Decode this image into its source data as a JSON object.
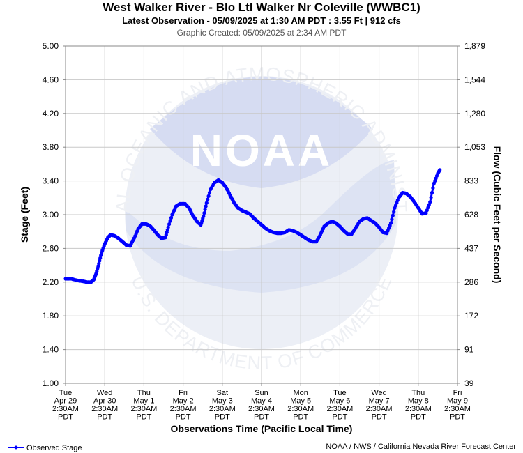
{
  "header": {
    "title": "West Walker River - Blo Ltl Walker Nr Coleville (WWBC1)",
    "subtitle": "Latest Observation - 05/09/2025 at 1:30 AM PDT : 3.55 Ft | 912 cfs",
    "created": "Graphic Created: 05/09/2025 at 2:34 AM PDT"
  },
  "watermark": {
    "logo_text": "NOAA",
    "ring_top": "NATIONAL OCEANIC AND ATMOSPHERIC ADMINISTRATION",
    "ring_bottom": "U.S. DEPARTMENT OF COMMERCE"
  },
  "footer": {
    "legend_label": "Observed Stage",
    "credit": "NOAA / NWS / California Nevada River Forecast Center"
  },
  "colors": {
    "series": "#0000ff",
    "grid": "#c8c8c8",
    "watermark": "#e8ecf6"
  },
  "chart_data": {
    "type": "line",
    "xlabel": "Observations Time (Pacific Local Time)",
    "ylabel": "Stage (Feet)",
    "y2label": "Flow (Cubic Feet per Second)",
    "ylim": [
      1.0,
      5.0
    ],
    "xlim": [
      0,
      10
    ],
    "grid": true,
    "legend_position": "bottom-left",
    "y_ticks": [
      "5.00",
      "4.60",
      "4.20",
      "3.80",
      "3.40",
      "3.00",
      "2.60",
      "2.20",
      "1.80",
      "1.40",
      "1.00"
    ],
    "y2_ticks": [
      "1,879",
      "1,544",
      "1,280",
      "1,053",
      "833",
      "628",
      "437",
      "286",
      "172",
      "91",
      "39"
    ],
    "x_ticks": [
      [
        "Tue",
        "Apr 29",
        "2:30AM",
        "PDT"
      ],
      [
        "Wed",
        "Apr 30",
        "2:30AM",
        "PDT"
      ],
      [
        "Thu",
        "May 1",
        "2:30AM",
        "PDT"
      ],
      [
        "Fri",
        "May 2",
        "2:30AM",
        "PDT"
      ],
      [
        "Sat",
        "May 3",
        "2:30AM",
        "PDT"
      ],
      [
        "Sun",
        "May 4",
        "2:30AM",
        "PDT"
      ],
      [
        "Mon",
        "May 5",
        "2:30AM",
        "PDT"
      ],
      [
        "Tue",
        "May 6",
        "2:30AM",
        "PDT"
      ],
      [
        "Wed",
        "May 7",
        "2:30AM",
        "PDT"
      ],
      [
        "Thu",
        "May 8",
        "2:30AM",
        "PDT"
      ],
      [
        "Fri",
        "May 9",
        "2:30AM",
        "PDT"
      ]
    ],
    "series": [
      {
        "name": "Observed Stage",
        "points": [
          [
            0.0,
            2.24
          ],
          [
            0.15,
            2.24
          ],
          [
            0.3,
            2.22
          ],
          [
            0.45,
            2.21
          ],
          [
            0.55,
            2.2
          ],
          [
            0.65,
            2.2
          ],
          [
            0.72,
            2.23
          ],
          [
            0.78,
            2.3
          ],
          [
            0.85,
            2.42
          ],
          [
            0.92,
            2.55
          ],
          [
            1.0,
            2.65
          ],
          [
            1.08,
            2.73
          ],
          [
            1.15,
            2.76
          ],
          [
            1.25,
            2.75
          ],
          [
            1.35,
            2.72
          ],
          [
            1.45,
            2.68
          ],
          [
            1.55,
            2.64
          ],
          [
            1.65,
            2.63
          ],
          [
            1.75,
            2.72
          ],
          [
            1.85,
            2.83
          ],
          [
            1.95,
            2.89
          ],
          [
            2.05,
            2.89
          ],
          [
            2.15,
            2.87
          ],
          [
            2.25,
            2.82
          ],
          [
            2.35,
            2.76
          ],
          [
            2.45,
            2.72
          ],
          [
            2.55,
            2.73
          ],
          [
            2.62,
            2.85
          ],
          [
            2.72,
            3.0
          ],
          [
            2.82,
            3.1
          ],
          [
            2.92,
            3.13
          ],
          [
            3.05,
            3.13
          ],
          [
            3.15,
            3.08
          ],
          [
            3.25,
            2.99
          ],
          [
            3.35,
            2.92
          ],
          [
            3.45,
            2.88
          ],
          [
            3.52,
            2.98
          ],
          [
            3.6,
            3.14
          ],
          [
            3.7,
            3.3
          ],
          [
            3.8,
            3.38
          ],
          [
            3.9,
            3.41
          ],
          [
            4.0,
            3.38
          ],
          [
            4.1,
            3.32
          ],
          [
            4.2,
            3.23
          ],
          [
            4.3,
            3.14
          ],
          [
            4.4,
            3.08
          ],
          [
            4.5,
            3.05
          ],
          [
            4.6,
            3.03
          ],
          [
            4.7,
            3.01
          ],
          [
            4.8,
            2.96
          ],
          [
            4.9,
            2.92
          ],
          [
            5.0,
            2.88
          ],
          [
            5.1,
            2.84
          ],
          [
            5.2,
            2.81
          ],
          [
            5.3,
            2.79
          ],
          [
            5.4,
            2.78
          ],
          [
            5.5,
            2.78
          ],
          [
            5.6,
            2.79
          ],
          [
            5.7,
            2.82
          ],
          [
            5.8,
            2.81
          ],
          [
            5.9,
            2.79
          ],
          [
            6.0,
            2.76
          ],
          [
            6.1,
            2.73
          ],
          [
            6.2,
            2.7
          ],
          [
            6.3,
            2.68
          ],
          [
            6.4,
            2.68
          ],
          [
            6.5,
            2.76
          ],
          [
            6.6,
            2.86
          ],
          [
            6.7,
            2.9
          ],
          [
            6.8,
            2.92
          ],
          [
            6.9,
            2.9
          ],
          [
            7.0,
            2.86
          ],
          [
            7.1,
            2.81
          ],
          [
            7.2,
            2.77
          ],
          [
            7.3,
            2.77
          ],
          [
            7.4,
            2.84
          ],
          [
            7.5,
            2.92
          ],
          [
            7.6,
            2.95
          ],
          [
            7.7,
            2.96
          ],
          [
            7.8,
            2.93
          ],
          [
            7.9,
            2.9
          ],
          [
            8.0,
            2.85
          ],
          [
            8.1,
            2.79
          ],
          [
            8.2,
            2.78
          ],
          [
            8.3,
            2.9
          ],
          [
            8.4,
            3.08
          ],
          [
            8.5,
            3.2
          ],
          [
            8.6,
            3.26
          ],
          [
            8.7,
            3.25
          ],
          [
            8.8,
            3.21
          ],
          [
            8.9,
            3.15
          ],
          [
            9.0,
            3.08
          ],
          [
            9.1,
            3.01
          ],
          [
            9.2,
            3.02
          ],
          [
            9.3,
            3.15
          ],
          [
            9.4,
            3.37
          ],
          [
            9.5,
            3.49
          ],
          [
            9.55,
            3.53
          ]
        ]
      }
    ]
  }
}
